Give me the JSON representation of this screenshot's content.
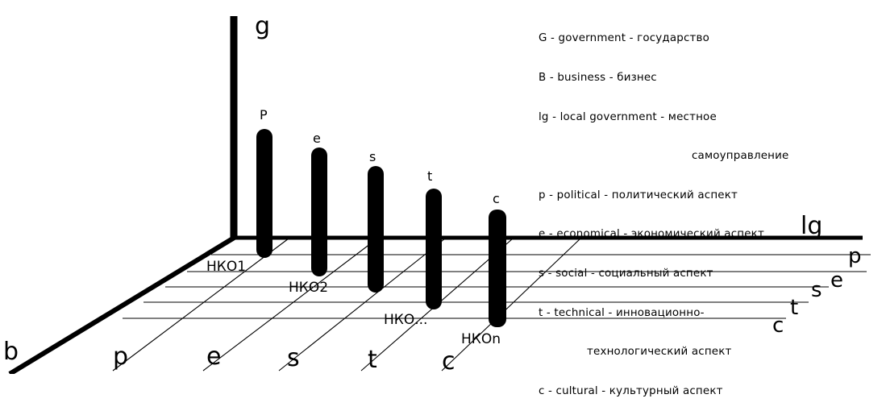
{
  "axes": {
    "vertical": "g",
    "horizontal": "lg",
    "depth": "b"
  },
  "right_labels": [
    "p",
    "e",
    "s",
    "t",
    "c"
  ],
  "bottom_labels": [
    "p",
    "e",
    "s",
    "t",
    "c"
  ],
  "bars": [
    {
      "top_label": "P",
      "org_label": "НКО1"
    },
    {
      "top_label": "e",
      "org_label": "НКО2"
    },
    {
      "top_label": "s",
      "org_label": ""
    },
    {
      "top_label": "t",
      "org_label": "НКО..."
    },
    {
      "top_label": "c",
      "org_label": "НКОn"
    }
  ],
  "legend": [
    "G - government - государство",
    "B - business - бизнес",
    "lg - local government - местное",
    "самоуправление",
    "p - political - политический аспект",
    "e - economical - экономический аспект",
    "s - social - социальный аспект",
    "t - technical - инновационно-",
    "технологический аспект",
    "c - cultural - культурный аспект"
  ]
}
